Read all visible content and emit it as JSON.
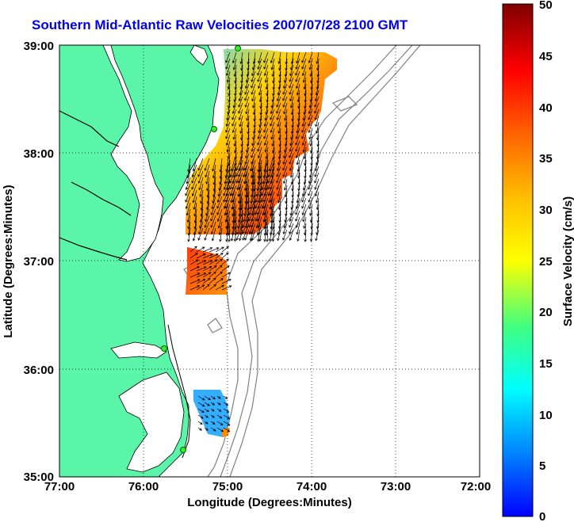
{
  "title": "Southern Mid-Atlantic Raw Velocities 2007/07/28 2100 GMT",
  "map": {
    "x_label": "Longitude (Degrees:Minutes)",
    "y_label": "Latitude (Degrees:Minutes)",
    "lon_ticks": [
      "77:00",
      "76:00",
      "75:00",
      "74:00",
      "73:00",
      "72:00"
    ],
    "lat_ticks": [
      "39:00",
      "38:00",
      "37:00",
      "36:00",
      "35:00"
    ],
    "land_color": "#5af5a8",
    "water_color": "#ffffff",
    "grid": "dotted"
  },
  "colorbar": {
    "label": "Surface Velocity (cm/s)",
    "ticks": [
      "50",
      "45",
      "40",
      "35",
      "30",
      "25",
      "20",
      "15",
      "10",
      "5",
      "0"
    ],
    "colormap": "jet",
    "range": [
      0,
      50
    ]
  }
}
